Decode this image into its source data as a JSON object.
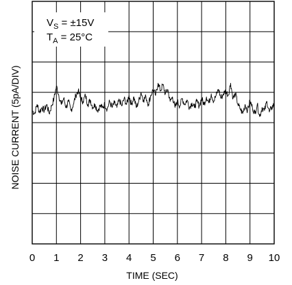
{
  "chart_data": {
    "type": "line",
    "title": "",
    "xlabel": "TIME (SEC)",
    "ylabel": "NOISE CURRENT (5pA/DIV)",
    "xlim": [
      0,
      10
    ],
    "x_ticks": [
      "0",
      "1",
      "2",
      "3",
      "4",
      "5",
      "6",
      "7",
      "8",
      "9",
      "10"
    ],
    "y_divisions": 8,
    "y_units_per_div": "5pA",
    "grid": true,
    "annotations": {
      "vs_main": "V",
      "vs_sub": "S",
      "vs_value": " = ±15V",
      "ta_main": "T",
      "ta_sub": "A",
      "ta_value": " = 25°C"
    },
    "series": [
      {
        "x": [
          0,
          0.1,
          0.2,
          0.3,
          0.4,
          0.5,
          0.6,
          0.7,
          0.8,
          0.9,
          1.0,
          1.1,
          1.2,
          1.3,
          1.4,
          1.5,
          1.6,
          1.7,
          1.8,
          1.9,
          2.0,
          2.1,
          2.2,
          2.3,
          2.4,
          2.5,
          2.6,
          2.7,
          2.8,
          2.9,
          3.0,
          3.1,
          3.2,
          3.3,
          3.4,
          3.5,
          3.6,
          3.7,
          3.8,
          3.9,
          4.0,
          4.1,
          4.2,
          4.3,
          4.4,
          4.5,
          4.6,
          4.7,
          4.8,
          4.9,
          5.0,
          5.1,
          5.2,
          5.3,
          5.4,
          5.5,
          5.6,
          5.7,
          5.8,
          5.9,
          6.0,
          6.1,
          6.2,
          6.3,
          6.4,
          6.5,
          6.6,
          6.7,
          6.8,
          6.9,
          7.0,
          7.1,
          7.2,
          7.3,
          7.4,
          7.5,
          7.6,
          7.7,
          7.8,
          7.9,
          8.0,
          8.1,
          8.2,
          8.3,
          8.4,
          8.5,
          8.6,
          8.7,
          8.8,
          8.9,
          9.0,
          9.1,
          9.2,
          9.3,
          9.4,
          9.5,
          9.6,
          9.7,
          9.8,
          9.9,
          10.0
        ],
        "y": [
          4.4,
          4.3,
          4.6,
          4.35,
          4.5,
          4.4,
          4.6,
          4.3,
          4.55,
          4.8,
          5.2,
          4.9,
          4.6,
          4.8,
          4.5,
          4.7,
          4.4,
          4.6,
          4.9,
          5.05,
          4.8,
          4.7,
          4.9,
          4.6,
          4.75,
          4.5,
          4.6,
          4.4,
          4.55,
          4.5,
          4.6,
          4.45,
          4.7,
          4.5,
          4.65,
          4.5,
          4.75,
          4.55,
          4.8,
          4.6,
          4.9,
          4.6,
          4.85,
          4.5,
          4.7,
          5.0,
          4.75,
          4.85,
          4.6,
          4.9,
          5.1,
          4.9,
          5.3,
          5.05,
          5.25,
          4.95,
          5.1,
          4.7,
          4.85,
          4.5,
          4.7,
          4.55,
          4.8,
          4.6,
          4.75,
          4.5,
          4.65,
          4.5,
          4.7,
          4.55,
          4.8,
          4.6,
          4.85,
          4.65,
          4.95,
          4.7,
          4.9,
          5.1,
          4.8,
          4.95,
          5.05,
          4.9,
          5.3,
          4.8,
          4.95,
          4.6,
          4.45,
          4.3,
          4.6,
          4.4,
          4.7,
          4.5,
          4.3,
          4.6,
          4.2,
          4.5,
          4.4,
          4.7,
          4.35,
          4.5,
          4.6
        ]
      }
    ]
  }
}
